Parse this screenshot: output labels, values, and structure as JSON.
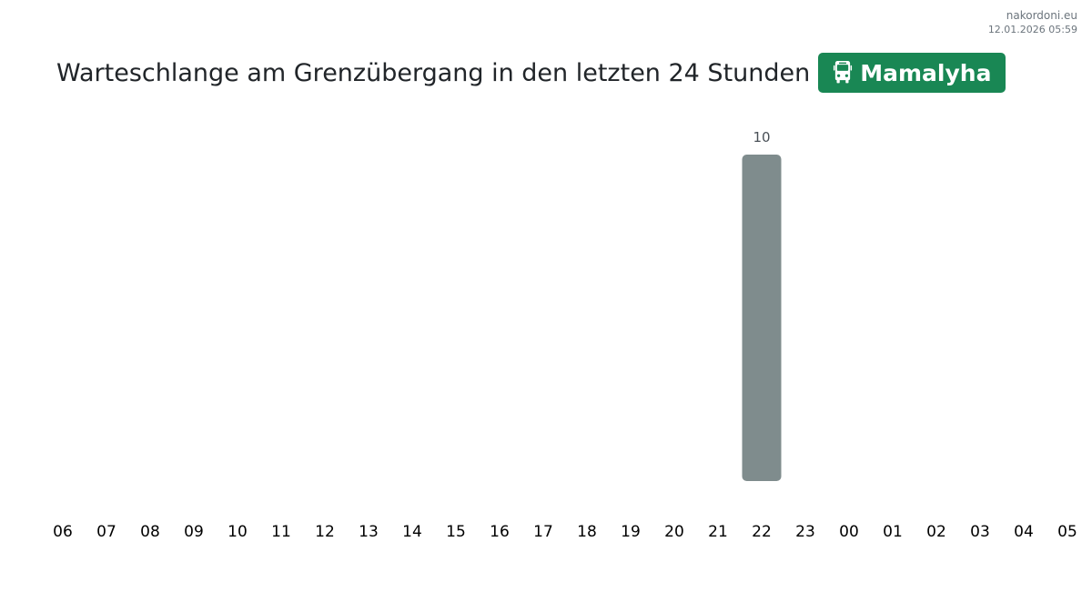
{
  "header": {
    "site": "nakordoni.eu",
    "timestamp": "12.01.2026 05:59"
  },
  "title": "Warteschlange am Grenzübergang in den letzten 24 Stunden",
  "badge": {
    "icon": "bus-icon",
    "label": "Mamalyha",
    "color": "#198754"
  },
  "chart_data": {
    "type": "bar",
    "title": "Warteschlange am Grenzübergang in den letzten 24 Stunden",
    "xlabel": "",
    "ylabel": "",
    "categories": [
      "06",
      "07",
      "08",
      "09",
      "10",
      "11",
      "12",
      "13",
      "14",
      "15",
      "16",
      "17",
      "18",
      "19",
      "20",
      "21",
      "22",
      "23",
      "00",
      "01",
      "02",
      "03",
      "04",
      "05"
    ],
    "values": [
      0,
      0,
      0,
      0,
      0,
      0,
      0,
      0,
      0,
      0,
      0,
      0,
      0,
      0,
      0,
      0,
      10,
      0,
      0,
      0,
      0,
      0,
      0,
      0
    ],
    "ylim": [
      0,
      10
    ],
    "grid": false,
    "legend": "none",
    "bar_color": "#7f8c8d",
    "label_color": "#495057"
  }
}
